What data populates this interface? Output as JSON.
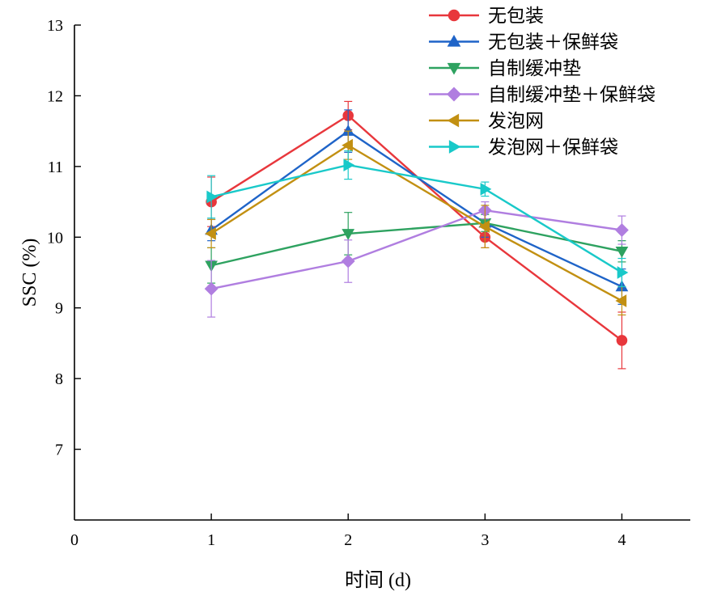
{
  "chart_data": {
    "type": "line",
    "title": "",
    "xlabel": "时间 (d)",
    "ylabel": "SSC (%)",
    "x": [
      1,
      2,
      3,
      4
    ],
    "xlim": [
      0,
      4.5
    ],
    "ylim": [
      6,
      13
    ],
    "x_ticks": [
      "0",
      "1",
      "2",
      "3",
      "4"
    ],
    "y_ticks": [
      "7",
      "8",
      "9",
      "10",
      "11",
      "12",
      "13"
    ],
    "grid": false,
    "legend_position": "top-right",
    "series": [
      {
        "name": "无包装",
        "color": "#e8373c",
        "marker": "circle",
        "values": [
          10.5,
          11.72,
          10.0,
          8.54
        ],
        "errors": [
          0.35,
          0.2,
          0.15,
          0.4
        ]
      },
      {
        "name": "无包装＋保鲜袋",
        "color": "#1f64c8",
        "marker": "triangle-up",
        "values": [
          10.1,
          11.5,
          10.2,
          9.3
        ],
        "errors": [
          0.15,
          0.3,
          0.2,
          0.25
        ]
      },
      {
        "name": "自制缓冲垫",
        "color": "#2ea260",
        "marker": "triangle-down",
        "values": [
          9.6,
          10.05,
          10.2,
          9.8
        ],
        "errors": [
          0.25,
          0.3,
          0.12,
          0.15
        ]
      },
      {
        "name": "自制缓冲垫＋保鲜袋",
        "color": "#b07ee0",
        "marker": "diamond",
        "values": [
          9.27,
          9.66,
          10.38,
          10.1
        ],
        "errors": [
          0.4,
          0.3,
          0.12,
          0.2
        ]
      },
      {
        "name": "发泡网",
        "color": "#c29012",
        "marker": "triangle-left",
        "values": [
          10.05,
          11.3,
          10.15,
          9.1
        ],
        "errors": [
          0.2,
          0.2,
          0.3,
          0.2
        ]
      },
      {
        "name": "发泡网＋保鲜袋",
        "color": "#19c9c9",
        "marker": "triangle-right",
        "values": [
          10.57,
          11.02,
          10.68,
          9.5
        ],
        "errors": [
          0.3,
          0.2,
          0.1,
          0.2
        ]
      }
    ]
  }
}
